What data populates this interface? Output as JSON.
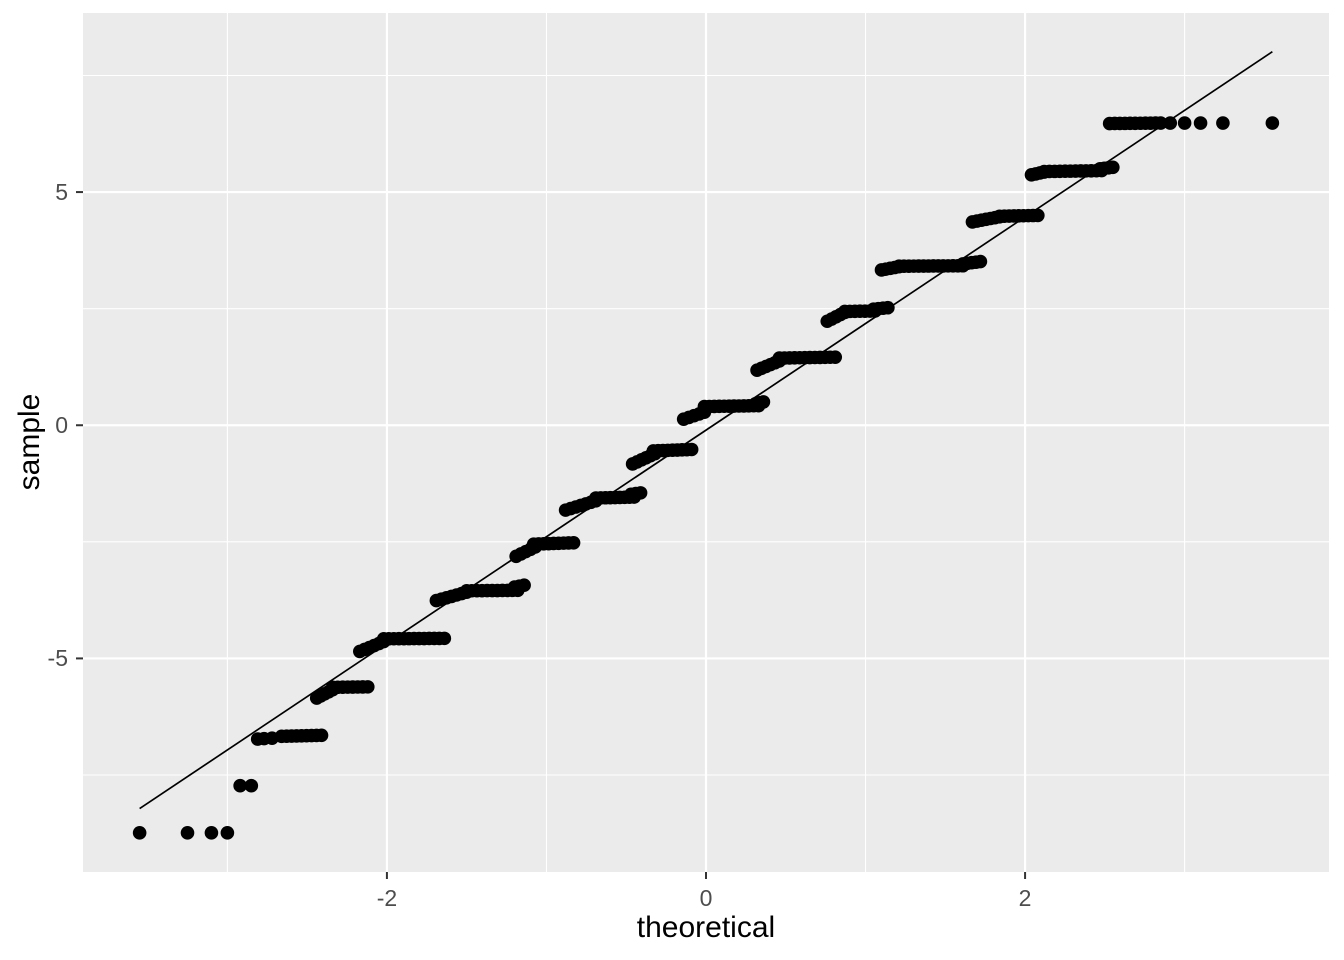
{
  "chart_data": {
    "type": "scatter",
    "subtype": "qq-plot",
    "title": "",
    "xlabel": "theoretical",
    "ylabel": "sample",
    "legend": "none",
    "grid": true,
    "xlim": [
      -3.905,
      3.905
    ],
    "ylim": [
      -9.58,
      8.84
    ],
    "x_ticks": [
      {
        "value": -2,
        "label": "-2"
      },
      {
        "value": 0,
        "label": "0"
      },
      {
        "value": 2,
        "label": "2"
      }
    ],
    "y_ticks": [
      {
        "value": -5,
        "label": "-5"
      },
      {
        "value": 0,
        "label": "0"
      },
      {
        "value": 5,
        "label": "5"
      }
    ],
    "x_minor_ticks": [
      -3,
      -1,
      1,
      3
    ],
    "y_minor_ticks": [
      -7.5,
      -2.5,
      2.5,
      7.5
    ],
    "colors": {
      "figure_background": "#FFFFFF",
      "panel_background": "#EBEBEB",
      "gridline": "#FFFFFF",
      "point": "#000000",
      "qq_line": "#000000",
      "tick_label": "#4D4D4D",
      "axis_title": "#000000",
      "tick_mark": "#333333"
    },
    "qq_line": {
      "x1": -3.55,
      "y1": -8.22,
      "x2": 3.55,
      "y2": 8.01
    },
    "points": {
      "dot_radius_px": 6.8,
      "segment_dot_spacing_px": 5,
      "steps": [
        {
          "level": -8.74,
          "dots": [
            [
              -3.55,
              -8.74
            ],
            [
              -3.25,
              -8.74
            ],
            [
              -3.1,
              -8.74
            ],
            [
              -3.0,
              -8.74
            ]
          ]
        },
        {
          "level": -7.73,
          "dots": [
            [
              -2.92,
              -7.73
            ],
            [
              -2.85,
              -7.73
            ]
          ]
        },
        {
          "level": -6.66,
          "dots": [
            [
              -2.81,
              -6.73
            ],
            [
              -2.77,
              -6.72
            ],
            [
              -2.72,
              -6.71
            ]
          ],
          "segments": [
            [
              -2.66,
              -6.67,
              -2.41,
              -6.65
            ]
          ]
        },
        {
          "level": -5.61,
          "segments": [
            [
              -2.44,
              -5.85,
              -2.34,
              -5.67
            ],
            [
              -2.34,
              -5.62,
              -2.12,
              -5.61
            ]
          ]
        },
        {
          "level": -4.57,
          "segments": [
            [
              -2.17,
              -4.85,
              -2.02,
              -4.64
            ],
            [
              -2.02,
              -4.58,
              -1.64,
              -4.57
            ]
          ]
        },
        {
          "level": -3.54,
          "segments": [
            [
              -1.69,
              -3.76,
              -1.5,
              -3.58
            ],
            [
              -1.5,
              -3.55,
              -1.18,
              -3.54
            ],
            [
              -1.2,
              -3.47,
              -1.14,
              -3.43
            ]
          ]
        },
        {
          "level": -2.52,
          "segments": [
            [
              -1.19,
              -2.81,
              -1.07,
              -2.61
            ],
            [
              -1.08,
              -2.55,
              -0.83,
              -2.52
            ]
          ]
        },
        {
          "level": -1.54,
          "segments": [
            [
              -0.88,
              -1.82,
              -0.69,
              -1.62
            ],
            [
              -0.69,
              -1.56,
              -0.45,
              -1.54
            ],
            [
              -0.47,
              -1.48,
              -0.41,
              -1.45
            ]
          ]
        },
        {
          "level": -0.52,
          "segments": [
            [
              -0.46,
              -0.83,
              -0.32,
              -0.61
            ],
            [
              -0.33,
              -0.55,
              -0.09,
              -0.52
            ]
          ]
        },
        {
          "level": 0.42,
          "segments": [
            [
              -0.14,
              0.13,
              -0.01,
              0.28
            ],
            [
              -0.01,
              0.4,
              0.33,
              0.42
            ],
            [
              0.31,
              0.46,
              0.36,
              0.5
            ]
          ]
        },
        {
          "level": 1.45,
          "segments": [
            [
              0.32,
              1.18,
              0.46,
              1.38
            ],
            [
              0.46,
              1.44,
              0.81,
              1.46
            ]
          ]
        },
        {
          "level": 2.45,
          "segments": [
            [
              0.76,
              2.23,
              0.87,
              2.42
            ],
            [
              0.87,
              2.44,
              1.06,
              2.45
            ],
            [
              1.05,
              2.49,
              1.14,
              2.52
            ]
          ]
        },
        {
          "level": 3.42,
          "segments": [
            [
              1.1,
              3.33,
              1.21,
              3.4
            ],
            [
              1.21,
              3.41,
              1.61,
              3.42
            ],
            [
              1.61,
              3.46,
              1.72,
              3.51
            ]
          ]
        },
        {
          "level": 4.49,
          "segments": [
            [
              1.67,
              4.36,
              1.84,
              4.47
            ],
            [
              1.84,
              4.48,
              2.08,
              4.5
            ]
          ]
        },
        {
          "level": 5.45,
          "segments": [
            [
              2.04,
              5.37,
              2.12,
              5.43
            ],
            [
              2.12,
              5.44,
              2.48,
              5.46
            ],
            [
              2.47,
              5.5,
              2.55,
              5.53
            ]
          ]
        },
        {
          "level": 6.48,
          "segments": [
            [
              2.53,
              6.47,
              2.85,
              6.48
            ]
          ],
          "dots": [
            [
              2.91,
              6.48
            ],
            [
              3.0,
              6.48
            ],
            [
              3.1,
              6.48
            ],
            [
              3.24,
              6.48
            ],
            [
              3.55,
              6.48
            ]
          ]
        }
      ]
    }
  }
}
